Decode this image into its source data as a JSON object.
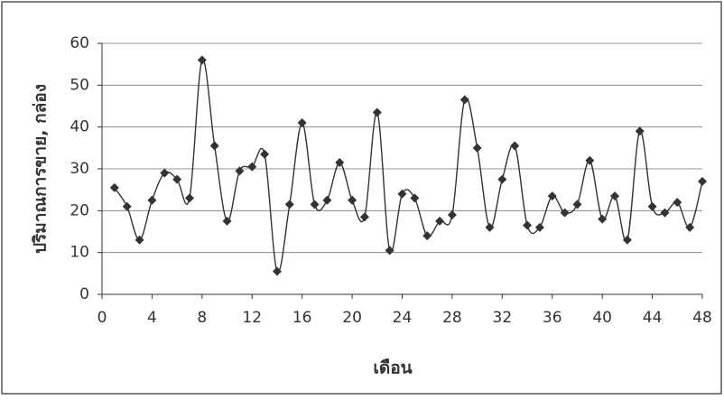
{
  "chart_data": {
    "type": "line",
    "x_label": "เดือน",
    "y_label": "ปริมาณการขาย, กล่อง",
    "x": [
      1,
      2,
      3,
      4,
      5,
      6,
      7,
      8,
      9,
      10,
      11,
      12,
      13,
      14,
      15,
      16,
      17,
      18,
      19,
      20,
      21,
      22,
      23,
      24,
      25,
      26,
      27,
      28,
      29,
      30,
      31,
      32,
      33,
      34,
      35,
      36,
      37,
      38,
      39,
      40,
      41,
      42,
      43,
      44,
      45,
      46,
      47,
      48
    ],
    "values": [
      25.5,
      21,
      13,
      22.5,
      29,
      27.5,
      23,
      56,
      35.5,
      17.5,
      29.5,
      30.5,
      33.5,
      5.5,
      21.5,
      41,
      21.5,
      22.5,
      31.5,
      22.5,
      18.5,
      43.5,
      10.5,
      24,
      23,
      14,
      17.5,
      19,
      46.5,
      35,
      16,
      27.5,
      35.5,
      16.5,
      16,
      23.5,
      19.5,
      21.5,
      32,
      18,
      23.5,
      13,
      39,
      21,
      19.5,
      22,
      16,
      27
    ],
    "color": "#333333",
    "smooth": true,
    "xlim": [
      0,
      48
    ],
    "xticks": [
      0,
      4,
      8,
      12,
      16,
      20,
      24,
      28,
      32,
      36,
      40,
      44,
      48
    ],
    "ylim": [
      0,
      60
    ],
    "yticks": [
      0,
      10,
      20,
      30,
      40,
      50,
      60
    ],
    "grid": true
  }
}
